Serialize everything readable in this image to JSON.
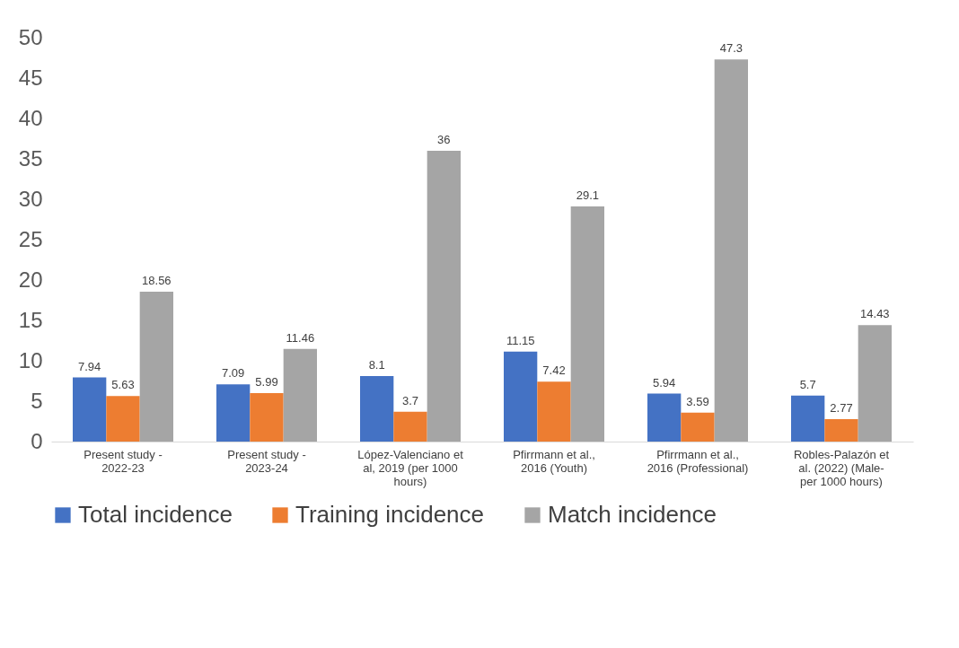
{
  "chart_data": {
    "type": "bar",
    "categories": [
      "Present study - 2022-23",
      "Present study - 2023-24",
      "López-Valenciano et al, 2019 (per 1000 hours)",
      "Pfirrmann et al., 2016 (Youth)",
      "Pfirrmann et al., 2016 (Professional)",
      "Robles-Palazón et al. (2022) (Male- per 1000 hours)"
    ],
    "series": [
      {
        "name": "Total incidence",
        "color": "#4472c4",
        "values": [
          7.94,
          7.09,
          8.1,
          11.15,
          5.94,
          5.7
        ]
      },
      {
        "name": "Training incidence",
        "color": "#ed7d31",
        "values": [
          5.63,
          5.99,
          3.7,
          7.42,
          3.59,
          2.77
        ]
      },
      {
        "name": "Match incidence",
        "color": "#a5a5a5",
        "values": [
          18.56,
          11.46,
          36,
          29.1,
          47.3,
          14.43
        ]
      }
    ],
    "ylim": [
      0,
      50
    ],
    "yticks": [
      0,
      5,
      10,
      15,
      20,
      25,
      30,
      35,
      40,
      45,
      50
    ],
    "data_labels": true,
    "grid": false,
    "legend": "bottom"
  }
}
